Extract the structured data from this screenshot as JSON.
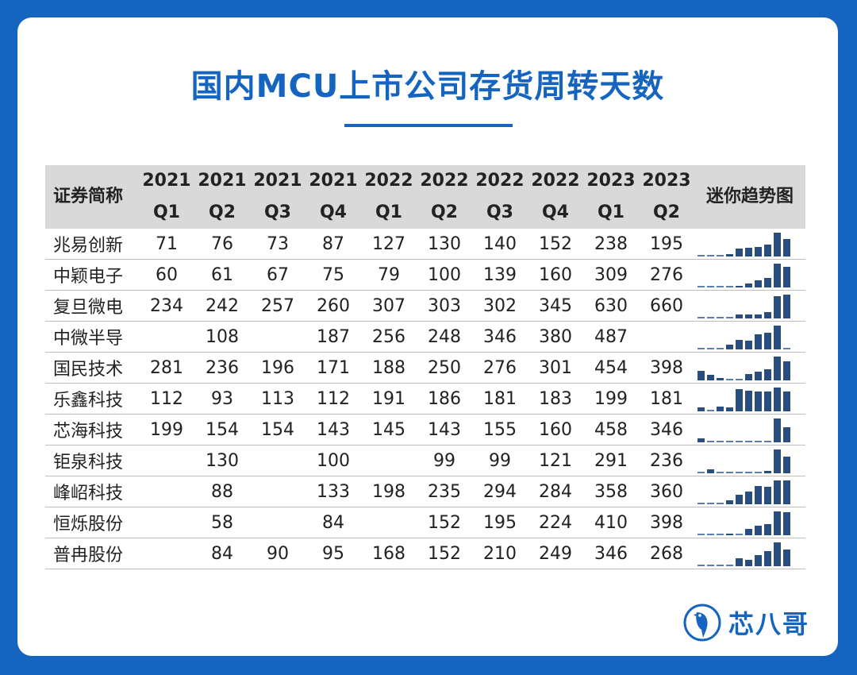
{
  "title": "国内MCU上市公司存货周转天数",
  "table": {
    "col0": "证券简称",
    "periods": [
      {
        "year": "2021",
        "q": "Q1"
      },
      {
        "year": "2021",
        "q": "Q2"
      },
      {
        "year": "2021",
        "q": "Q3"
      },
      {
        "year": "2021",
        "q": "Q4"
      },
      {
        "year": "2022",
        "q": "Q1"
      },
      {
        "year": "2022",
        "q": "Q2"
      },
      {
        "year": "2022",
        "q": "Q3"
      },
      {
        "year": "2022",
        "q": "Q4"
      },
      {
        "year": "2023",
        "q": "Q1"
      },
      {
        "year": "2023",
        "q": "Q2"
      }
    ],
    "spark_header": "迷你趋势图",
    "rows": [
      {
        "name": "兆易创新",
        "values": [
          "71",
          "76",
          "73",
          "87",
          "127",
          "130",
          "140",
          "152",
          "238",
          "195"
        ]
      },
      {
        "name": "中颖电子",
        "values": [
          "60",
          "61",
          "67",
          "75",
          "79",
          "100",
          "139",
          "160",
          "309",
          "276"
        ]
      },
      {
        "name": "复旦微电",
        "values": [
          "234",
          "242",
          "257",
          "260",
          "307",
          "303",
          "302",
          "345",
          "630",
          "660"
        ]
      },
      {
        "name": "中微半导",
        "values": [
          "",
          "108",
          "",
          "187",
          "256",
          "248",
          "346",
          "380",
          "487",
          ""
        ]
      },
      {
        "name": "国民技术",
        "values": [
          "281",
          "236",
          "196",
          "171",
          "188",
          "250",
          "276",
          "301",
          "454",
          "398"
        ]
      },
      {
        "name": "乐鑫科技",
        "values": [
          "112",
          "93",
          "113",
          "112",
          "191",
          "186",
          "181",
          "183",
          "199",
          "181"
        ]
      },
      {
        "name": "芯海科技",
        "values": [
          "199",
          "154",
          "154",
          "143",
          "145",
          "143",
          "155",
          "160",
          "458",
          "346"
        ]
      },
      {
        "name": "钜泉科技",
        "values": [
          "",
          "130",
          "",
          "100",
          "",
          "99",
          "99",
          "121",
          "291",
          "236"
        ]
      },
      {
        "name": "峰岹科技",
        "values": [
          "",
          "88",
          "",
          "133",
          "198",
          "235",
          "294",
          "284",
          "358",
          "360"
        ]
      },
      {
        "name": "恒烁股份",
        "values": [
          "",
          "58",
          "",
          "84",
          "",
          "152",
          "195",
          "224",
          "410",
          "398"
        ]
      },
      {
        "name": "普冉股份",
        "values": [
          "",
          "84",
          "90",
          "95",
          "168",
          "152",
          "210",
          "249",
          "346",
          "268"
        ]
      }
    ]
  },
  "logo": {
    "text": "芯八哥"
  },
  "colors": {
    "brand": "#1565c0",
    "spark": "#2a4d7f",
    "header_bg": "#d9d9d9"
  }
}
